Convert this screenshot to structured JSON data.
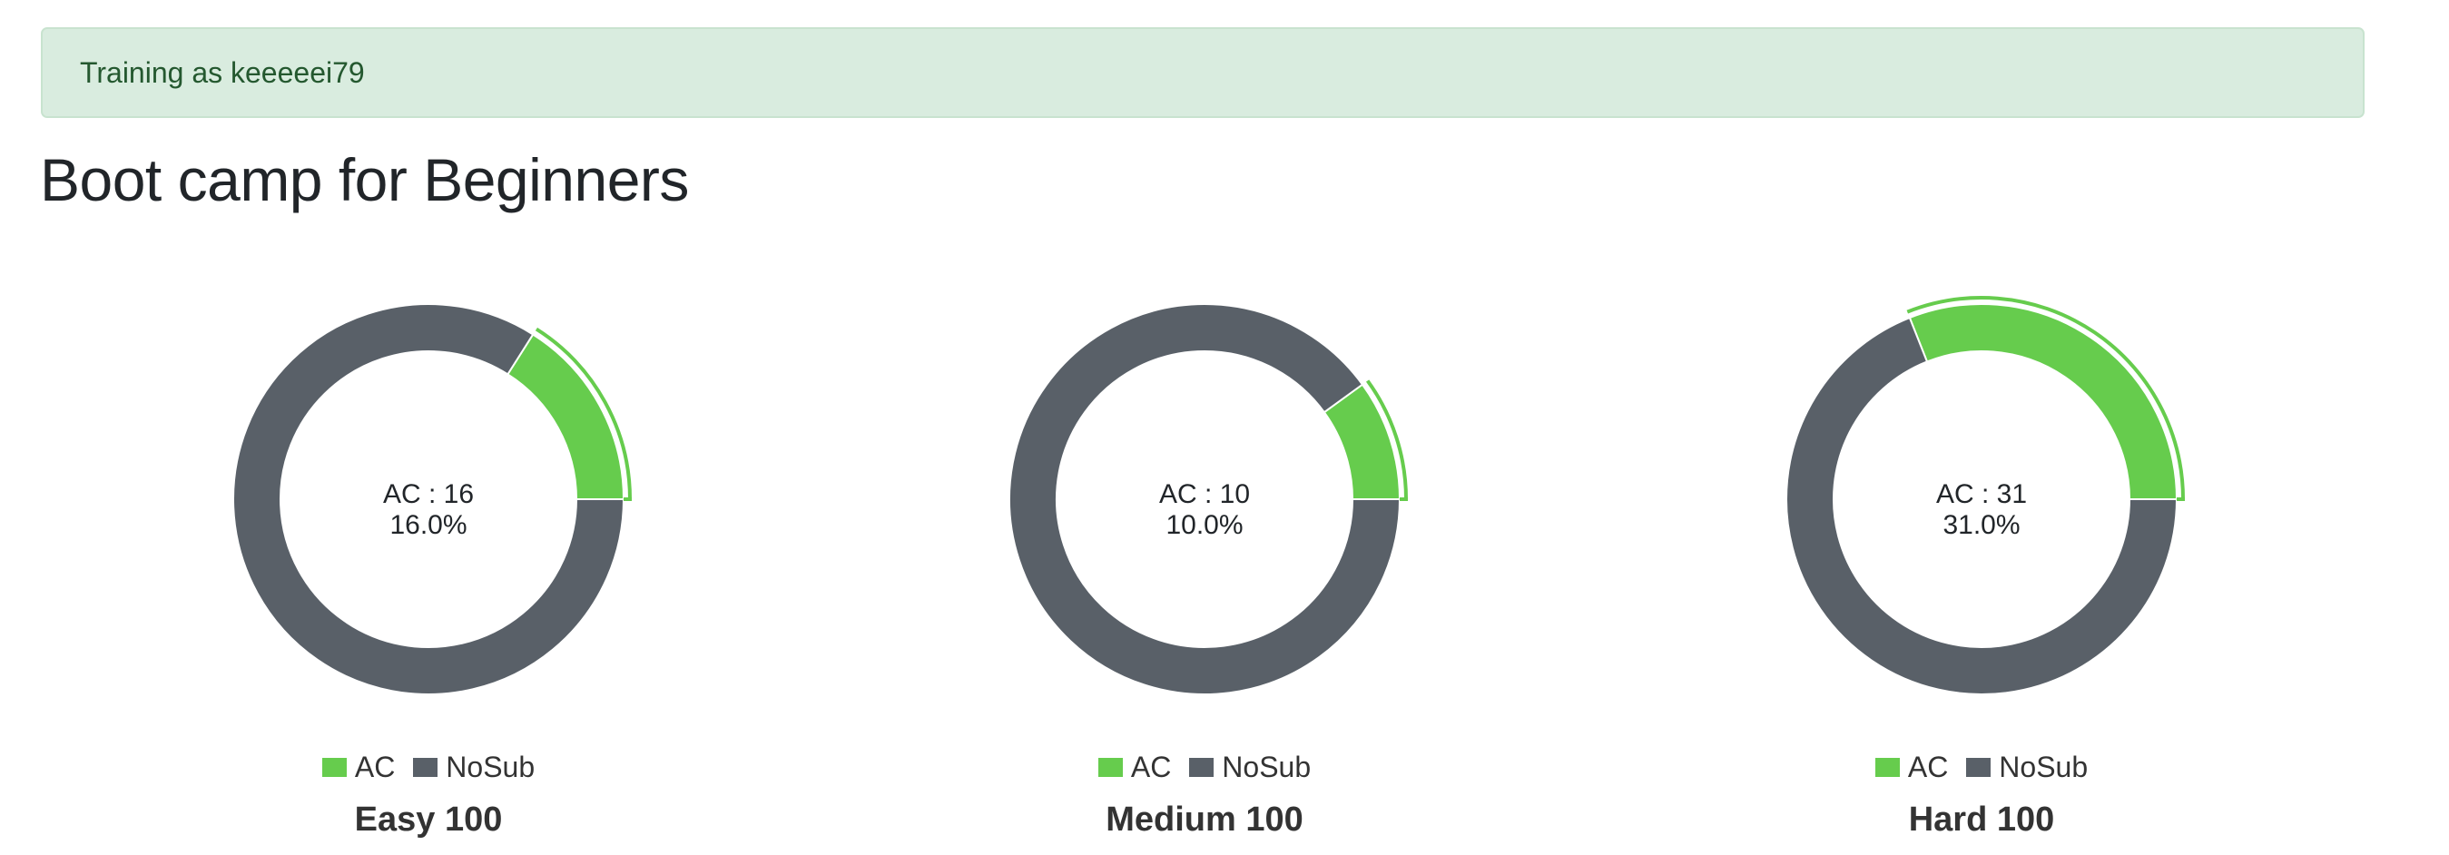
{
  "alert": {
    "text": "Training as keeeeei79"
  },
  "page": {
    "title": "Boot camp for Beginners"
  },
  "colors": {
    "ac": "#66cc4d",
    "nosub": "#596068"
  },
  "chart_data": [
    {
      "type": "pie",
      "title": "Easy 100",
      "center_text": [
        "AC : 16",
        "16.0%"
      ],
      "categories": [
        "AC",
        "NoSub"
      ],
      "values": [
        16,
        84
      ],
      "legend": [
        "AC",
        "NoSub"
      ],
      "legend_position": "bottom"
    },
    {
      "type": "pie",
      "title": "Medium 100",
      "center_text": [
        "AC : 10",
        "10.0%"
      ],
      "categories": [
        "AC",
        "NoSub"
      ],
      "values": [
        10,
        90
      ],
      "legend": [
        "AC",
        "NoSub"
      ],
      "legend_position": "bottom"
    },
    {
      "type": "pie",
      "title": "Hard 100",
      "center_text": [
        "AC : 31",
        "31.0%"
      ],
      "categories": [
        "AC",
        "NoSub"
      ],
      "values": [
        31,
        69
      ],
      "legend": [
        "AC",
        "NoSub"
      ],
      "legend_position": "bottom"
    }
  ]
}
